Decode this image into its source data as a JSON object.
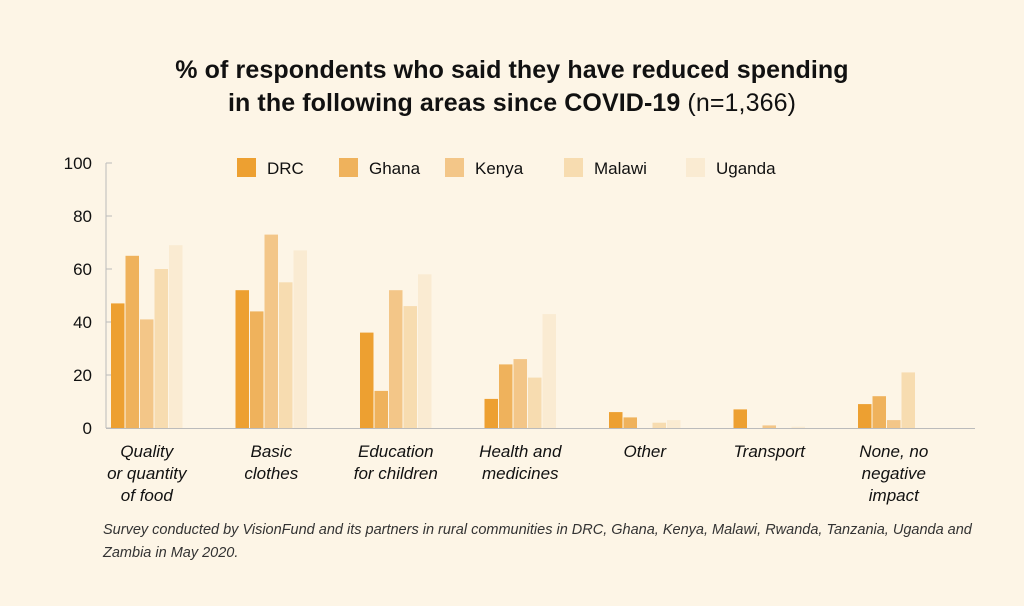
{
  "title": {
    "main_line1": "% of respondents who said they have reduced spending",
    "main_line2": "in the following areas since COVID-19",
    "sample": "(n=1,366)"
  },
  "footnote": "Survey conducted by VisionFund and its partners in rural communities in DRC, Ghana, Kenya, Malawi, Rwanda, Tanzania, Uganda and Zambia in May 2020.",
  "chart_data": {
    "type": "bar",
    "title": "% of respondents who said they have reduced spending in the following areas since COVID-19 (n=1,366)",
    "xlabel": "",
    "ylabel": "",
    "ylim": [
      0,
      100
    ],
    "yticks": [
      0,
      20,
      40,
      60,
      80,
      100
    ],
    "grid": false,
    "legend_position": "top",
    "categories": [
      [
        "Quality",
        "or quantity",
        "of food"
      ],
      [
        "Basic",
        "clothes"
      ],
      [
        "Education",
        "for children"
      ],
      [
        "Health and",
        "medicines"
      ],
      [
        "Other"
      ],
      [
        "Transport"
      ],
      [
        "None, no",
        "negative",
        "impact"
      ]
    ],
    "series": [
      {
        "name": "DRC",
        "color": "#eda031",
        "values": [
          47,
          52,
          36,
          11,
          6,
          7,
          9
        ]
      },
      {
        "name": "Ghana",
        "color": "#efb25c",
        "values": [
          65,
          44,
          14,
          24,
          4,
          0,
          12
        ]
      },
      {
        "name": "Kenya",
        "color": "#f3c688",
        "values": [
          41,
          73,
          52,
          26,
          0,
          1,
          3
        ]
      },
      {
        "name": "Malawi",
        "color": "#f7dcb0",
        "values": [
          60,
          55,
          46,
          19,
          2,
          0,
          21
        ]
      },
      {
        "name": "Uganda",
        "color": "#faebd2",
        "values": [
          69,
          67,
          58,
          43,
          3,
          0.5,
          0
        ]
      }
    ]
  }
}
